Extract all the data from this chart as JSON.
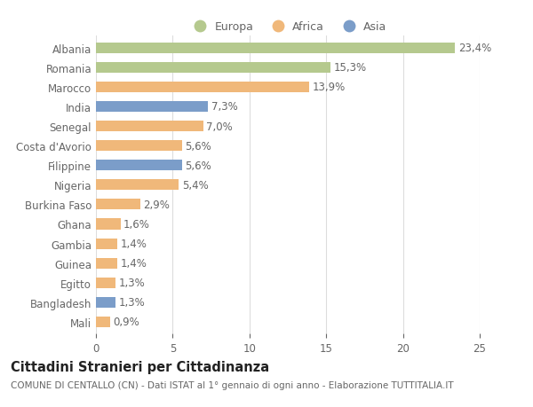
{
  "countries": [
    "Albania",
    "Romania",
    "Marocco",
    "India",
    "Senegal",
    "Costa d'Avorio",
    "Filippine",
    "Nigeria",
    "Burkina Faso",
    "Ghana",
    "Gambia",
    "Guinea",
    "Egitto",
    "Bangladesh",
    "Mali"
  ],
  "values": [
    23.4,
    15.3,
    13.9,
    7.3,
    7.0,
    5.6,
    5.6,
    5.4,
    2.9,
    1.6,
    1.4,
    1.4,
    1.3,
    1.3,
    0.9
  ],
  "labels": [
    "23,4%",
    "15,3%",
    "13,9%",
    "7,3%",
    "7,0%",
    "5,6%",
    "5,6%",
    "5,4%",
    "2,9%",
    "1,6%",
    "1,4%",
    "1,4%",
    "1,3%",
    "1,3%",
    "0,9%"
  ],
  "continents": [
    "Europa",
    "Europa",
    "Africa",
    "Asia",
    "Africa",
    "Africa",
    "Asia",
    "Africa",
    "Africa",
    "Africa",
    "Africa",
    "Africa",
    "Africa",
    "Asia",
    "Africa"
  ],
  "colors": {
    "Europa": "#b5c98e",
    "Africa": "#f0b87a",
    "Asia": "#7b9dc9"
  },
  "title": "Cittadini Stranieri per Cittadinanza",
  "subtitle": "COMUNE DI CENTALLO (CN) - Dati ISTAT al 1° gennaio di ogni anno - Elaborazione TUTTITALIA.IT",
  "xlim": [
    0,
    25
  ],
  "xticks": [
    0,
    5,
    10,
    15,
    20,
    25
  ],
  "bar_height": 0.55,
  "background_color": "#ffffff",
  "grid_color": "#dddddd",
  "text_color": "#666666",
  "bar_label_fontsize": 8.5,
  "ytick_fontsize": 8.5,
  "xtick_fontsize": 8.5,
  "title_fontsize": 10.5,
  "subtitle_fontsize": 7.5,
  "legend_fontsize": 9
}
